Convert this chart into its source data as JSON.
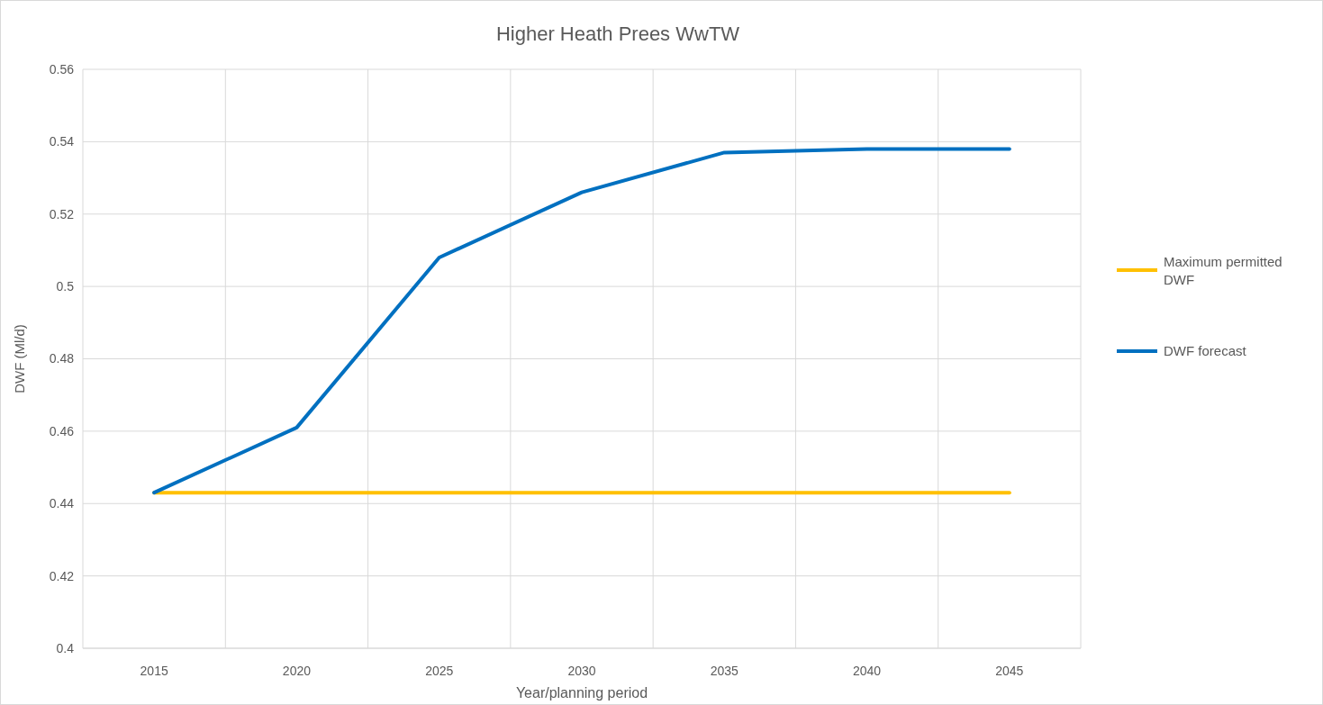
{
  "chart_data": {
    "type": "line",
    "title": "Higher Heath Prees WwTW",
    "xlabel": "Year/planning period",
    "ylabel": "DWF (Ml/d)",
    "categories": [
      "2015",
      "2020",
      "2025",
      "2030",
      "2035",
      "2040",
      "2045"
    ],
    "series": [
      {
        "name": "Maximum permitted DWF",
        "color": "#ffc000",
        "values": [
          0.443,
          0.443,
          0.443,
          0.443,
          0.443,
          0.443,
          0.443
        ]
      },
      {
        "name": "DWF forecast",
        "color": "#0070c0",
        "values": [
          0.443,
          0.461,
          0.508,
          0.526,
          0.537,
          0.538,
          0.538
        ]
      }
    ],
    "ylim": [
      0.4,
      0.56
    ],
    "yticks": [
      {
        "value": 0.4,
        "label": "0.4"
      },
      0.42,
      0.44,
      0.46,
      0.48,
      {
        "value": 0.5,
        "label": "0.5"
      },
      0.52,
      0.54,
      0.56
    ],
    "grid": true,
    "legend": "right",
    "marker": "none",
    "line_style": "solid"
  }
}
